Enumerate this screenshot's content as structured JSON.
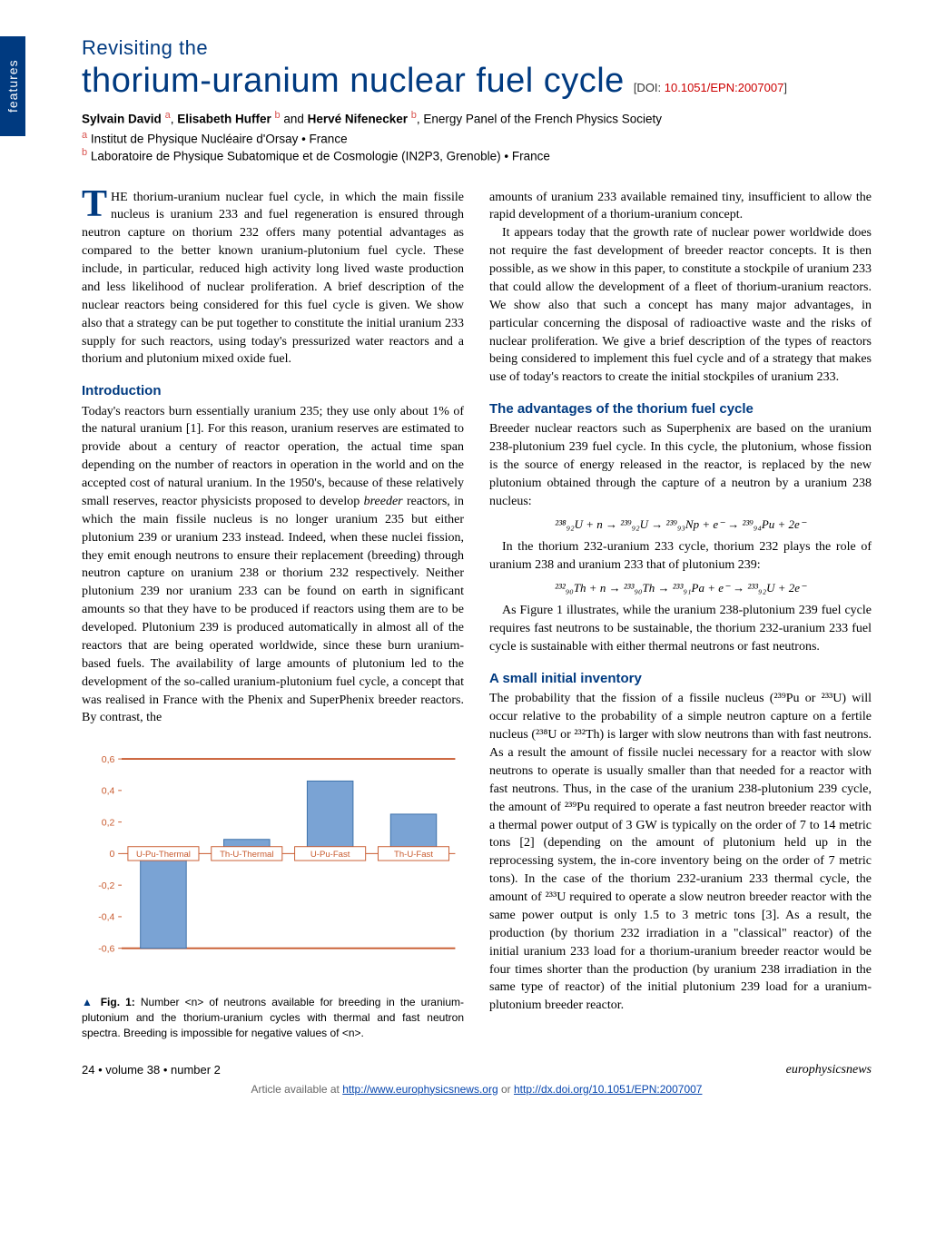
{
  "sideTab": "features",
  "kicker": "Revisiting the",
  "title": "thorium-uranium nuclear fuel cycle",
  "doiLabel": "[DOI: ",
  "doiLink": "10.1051/EPN:2007007",
  "doiClose": "]",
  "authorsHTML": "<b>Sylvain David</b> <span class='sup'>a</span>, <b>Elisabeth Huffer</b> <span class='sup'>b</span> and <b>Hervé Nifenecker</b> <span class='sup'>b</span>, Energy Panel of the French Physics Society",
  "affilA": "Institut de Physique Nucléaire d'Orsay • France",
  "affilB": "Laboratoire de Physique Subatomique et de Cosmologie (IN2P3, Grenoble) • France",
  "col1": {
    "abstract": "HE thorium-uranium nuclear fuel cycle, in which the main fissile nucleus is uranium 233 and fuel regeneration is ensured through neutron capture on thorium 232 offers many potential advantages as compared to the better known uranium-plutonium fuel cycle. These include, in particular, reduced high activity long lived waste production and less likelihood of nuclear proliferation. A brief description of the nuclear reactors being considered for this fuel cycle is given. We show also that a strategy can be put together to constitute the initial uranium 233 supply for such reactors, using today's pressurized water reactors and a thorium and plutonium mixed oxide fuel.",
    "introHead": "Introduction",
    "intro": "Today's reactors burn essentially uranium 235; they use only about 1% of the natural uranium [1]. For this reason, uranium reserves are estimated to provide about a century of reactor operation, the actual time span depending on the number of reactors in operation in the world and on the accepted cost of natural uranium. In the 1950's, because of these relatively small reserves, reactor physicists proposed to develop <i>breeder</i> reactors, in which the main fissile nucleus is no longer uranium 235 but either plutonium 239 or uranium 233 instead. Indeed, when these nuclei fission, they emit enough neutrons to ensure their replacement (breeding) through neutron capture on uranium 238 or thorium 232 respectively. Neither plutonium 239 nor uranium 233 can be found on earth in significant amounts so that they have to be produced if reactors using them are to be developed. Plutonium 239 is produced automatically in almost all of the reactors that are being operated worldwide, since these burn uranium-based fuels. The availability of large amounts of plutonium led to the development of the so-called uranium-plutonium fuel cycle, a concept that was realised in France with the Phenix and SuperPhenix breeder reactors. By contrast, the"
  },
  "col2": {
    "para1": "amounts of uranium 233 available remained tiny, insufficient to allow the rapid development of a thorium-uranium concept.",
    "para2": "It appears today that the growth rate of nuclear power worldwide does not require the fast development of breeder reactor concepts. It is then possible, as we show in this paper, to constitute a stockpile of uranium 233 that could allow the development of a fleet of thorium-uranium reactors. We show also that such a concept has many major advantages, in particular concerning the disposal of radioactive waste and the risks of nuclear proliferation. We give a brief description of the types of reactors being considered to implement this fuel cycle and of a strategy that makes use of today's reactors to create the initial stockpiles of uranium 233.",
    "advHead": "The advantages of the thorium fuel cycle",
    "adv1": "Breeder nuclear reactors such as Superphenix are based on the uranium 238-plutonium 239 fuel cycle. In this cycle, the plutonium, whose fission is the source of energy released in the reactor, is replaced by the new plutonium obtained through the capture of a neutron by a uranium 238 nucleus:",
    "eqn1": "²³⁸₉₂U + n → ²³⁹₉₂U → ²³⁹₉₃Np + e⁻ → ²³⁹₉₄Pu + 2e⁻",
    "adv2": "In the thorium 232-uranium 233 cycle, thorium 232 plays the role of uranium 238 and uranium 233 that of plutonium 239:",
    "eqn2": "²³²₉₀Th + n → ²³³₉₀Th → ²³³₉₁Pa + e⁻ → ²³³₉₂U + 2e⁻",
    "adv3": "As Figure 1 illustrates, while the uranium 238-plutonium 239 fuel cycle requires fast neutrons to be sustainable, the thorium 232-uranium 233 fuel cycle is sustainable with either thermal neutrons or fast neutrons.",
    "smallHead": "A small initial inventory",
    "small": "The probability that the fission of a fissile nucleus (²³⁹Pu or ²³³U) will occur relative to the probability of a simple neutron capture on a fertile nucleus (²³⁸U or ²³²Th) is larger with slow neutrons than with fast neutrons. As a result the amount of fissile nuclei necessary for a reactor with slow neutrons to operate is usually smaller than that needed for a reactor with fast neutrons. Thus, in the case of the uranium 238-plutonium 239 cycle, the amount of ²³⁹Pu required to operate a fast neutron breeder reactor with a thermal power output of 3 GW is typically on the order of 7 to 14 metric tons [2] (depending on the amount of plutonium held up in the reprocessing system, the in-core inventory being on the order of 7 metric tons). In the case of the thorium 232-uranium 233 thermal cycle, the amount of ²³³U required to operate a slow neutron breeder reactor with the same power output is only 1.5 to 3 metric tons [3]. As a result, the production (by thorium 232 irradiation in a \"classical\" reactor) of the initial uranium 233 load for a thorium-uranium breeder reactor would be four times shorter than the production (by uranium 238 irradiation in the same type of reactor) of the initial plutonium 239 load for a uranium-plutonium breeder reactor."
  },
  "figure": {
    "type": "bar",
    "categories": [
      "U-Pu-Thermal",
      "Th-U-Thermal",
      "U-Pu-Fast",
      "Th-U-Fast"
    ],
    "values": [
      -0.6,
      0.09,
      0.46,
      0.25
    ],
    "ylim": [
      -0.6,
      0.6
    ],
    "ytick_step": 0.2,
    "bar_color": "#7aa3d4",
    "bar_border": "#3b6fa8",
    "axis_color": "#c85a2e",
    "background": "#ffffff",
    "label_color": "#c85a2e",
    "label_fontsize": 11,
    "caption": "<span class='tri'>▲</span> <b>Fig. 1:</b> Number &lt;n&gt; of neutrons available for breeding in the uranium-plutonium and the thorium-uranium cycles with thermal and fast neutron spectra. Breeding is impossible for negative values of &lt;n&gt;."
  },
  "footer": {
    "left": "24 • volume 38 • number 2",
    "right": "europhysicsnews",
    "avail": "Article available at ",
    "url1": "http://www.europhysicsnews.org",
    "or": " or ",
    "url2": "http://dx.doi.org/10.1051/EPN:2007007"
  }
}
